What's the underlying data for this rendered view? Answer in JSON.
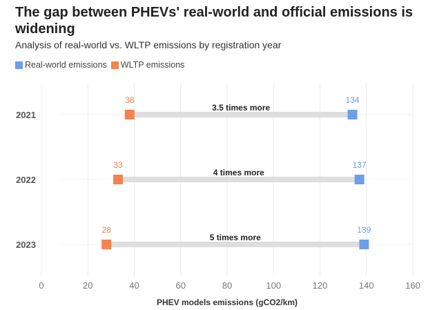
{
  "chart_data": {
    "type": "dumbbell",
    "title": "The gap between PHEVs' real-world and official emissions is widening",
    "subtitle": "Analysis of real-world vs. WLTP emissions by registration year",
    "xlabel": "PHEV models emissions (gCO2/km)",
    "xlim": [
      0,
      160
    ],
    "xticks": [
      0,
      20,
      40,
      60,
      80,
      100,
      120,
      140,
      160
    ],
    "categories": [
      "2021",
      "2022",
      "2023"
    ],
    "series": [
      {
        "name": "Real-world emissions",
        "color": "#6d9eeb",
        "values": [
          134,
          137,
          139
        ]
      },
      {
        "name": "WLTP emissions",
        "color": "#f4834f",
        "values": [
          38,
          33,
          28
        ]
      }
    ],
    "annotations": [
      "3.5 times more",
      "4 times more",
      "5 times more"
    ],
    "legend": "top-left",
    "grid": true
  }
}
